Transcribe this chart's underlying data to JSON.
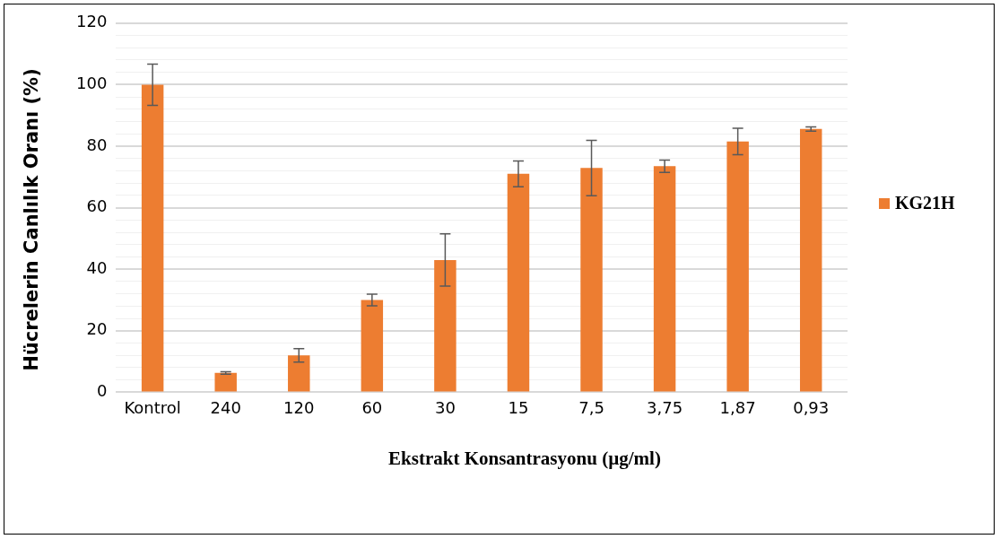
{
  "chart_data": {
    "type": "bar",
    "xlabel": "Ekstrakt Konsantrasyonu (µg/ml)",
    "ylabel": "Hücrelerin Canlılık Oranı (%)",
    "categories": [
      "Kontrol",
      "240",
      "120",
      "60",
      "30",
      "15",
      "7,5",
      "3,75",
      "1,87",
      "0,93"
    ],
    "series": [
      {
        "name": "KG21H",
        "color": "#ed7d31",
        "values": [
          100,
          6.3,
          12,
          30,
          43,
          71,
          72.9,
          73.5,
          81.5,
          85.6
        ],
        "errors": [
          6.7,
          0.4,
          2.2,
          1.9,
          8.5,
          4.2,
          9,
          2,
          4.3,
          0.7
        ]
      }
    ],
    "ylim": [
      0,
      120
    ],
    "yticks": [
      0,
      {
        "value": 4,
        "label": null
      },
      {
        "value": 8,
        "label": null
      },
      {
        "value": 12,
        "label": null
      },
      {
        "value": 16,
        "label": null
      },
      20,
      {
        "value": 24,
        "label": null
      },
      {
        "value": 28,
        "label": null
      },
      {
        "value": 32,
        "label": null
      },
      {
        "value": 36,
        "label": null
      },
      40,
      {
        "value": 44,
        "label": null
      },
      {
        "value": 48,
        "label": null
      },
      {
        "value": 52,
        "label": null
      },
      {
        "value": 56,
        "label": null
      },
      60,
      {
        "value": 64,
        "label": null
      },
      {
        "value": 68,
        "label": null
      },
      {
        "value": 72,
        "label": null
      },
      {
        "value": 76,
        "label": null
      },
      80,
      {
        "value": 84,
        "label": null
      },
      {
        "value": 88,
        "label": null
      },
      {
        "value": 92,
        "label": null
      },
      {
        "value": 96,
        "label": null
      },
      100,
      {
        "value": 104,
        "label": null
      },
      {
        "value": 108,
        "label": null
      },
      {
        "value": 112,
        "label": null
      },
      {
        "value": 116,
        "label": null
      },
      120
    ],
    "grid": "y",
    "legend": "right"
  }
}
